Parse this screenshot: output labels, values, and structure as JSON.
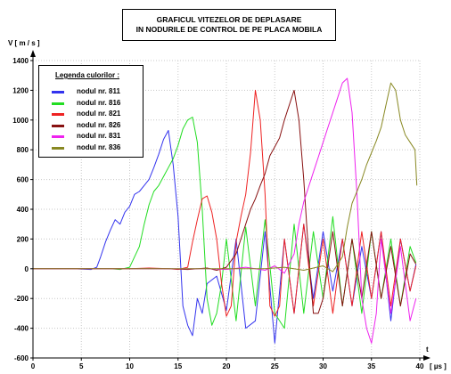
{
  "chart_data": {
    "type": "line",
    "title": [
      "GRAFICUL VITEZELOR DE DEPLASARE",
      "IN NODURILE DE CONTROL DE PE PLACA MOBILA"
    ],
    "ylabel": "V   [ m / s ]",
    "xlabel_top": "t",
    "xlabel": "[ µs ]",
    "xlim": [
      0,
      40
    ],
    "ylim": [
      -600,
      1400
    ],
    "xticks": [
      0,
      5,
      10,
      15,
      20,
      25,
      30,
      35,
      40
    ],
    "yticks": [
      -600,
      -400,
      -200,
      0,
      200,
      400,
      600,
      800,
      1000,
      1200,
      1400
    ],
    "grid": true,
    "legend_title": "Legenda culorilor :",
    "legend_position": "top-left",
    "series": [
      {
        "name": "nodul nr. 811",
        "color": "#3333ee",
        "x": [
          0,
          4,
          6,
          6.6,
          7,
          7.5,
          8,
          8.5,
          9,
          9.5,
          10,
          10.5,
          11,
          11.5,
          12,
          12.5,
          13,
          13.5,
          14,
          14.5,
          15,
          15.5,
          16,
          16.5,
          17,
          17.5,
          18,
          19,
          20,
          21,
          22,
          23,
          24,
          25,
          26,
          27,
          28,
          29,
          30,
          31,
          32,
          33,
          34,
          35,
          36,
          37,
          38,
          39,
          39.6
        ],
        "y": [
          0,
          0,
          -5,
          10,
          80,
          180,
          260,
          330,
          300,
          380,
          420,
          500,
          520,
          560,
          600,
          680,
          770,
          870,
          930,
          700,
          350,
          -250,
          -380,
          -450,
          -200,
          -300,
          -100,
          -50,
          -280,
          200,
          -400,
          -350,
          250,
          -500,
          200,
          -300,
          300,
          -200,
          250,
          -150,
          200,
          -250,
          150,
          -200,
          250,
          -350,
          200,
          -150,
          30
        ]
      },
      {
        "name": "nodul nr. 816",
        "color": "#22dd22",
        "x": [
          0,
          8,
          9,
          10,
          11,
          11.5,
          12,
          12.5,
          13,
          13.5,
          14,
          14.5,
          15,
          15.5,
          16,
          16.5,
          17,
          17.5,
          18,
          18.5,
          19,
          19.5,
          20,
          21,
          22,
          23,
          24,
          25,
          26,
          27,
          28,
          29,
          30,
          31,
          32,
          33,
          34,
          35,
          36,
          37,
          38,
          39,
          39.6
        ],
        "y": [
          0,
          0,
          -5,
          10,
          150,
          300,
          430,
          520,
          560,
          620,
          680,
          740,
          830,
          940,
          1000,
          1020,
          850,
          400,
          -200,
          -380,
          -300,
          -100,
          200,
          -350,
          280,
          -250,
          330,
          -300,
          -400,
          300,
          -300,
          250,
          -200,
          350,
          -250,
          200,
          -300,
          250,
          -200,
          200,
          -250,
          150,
          40
        ]
      },
      {
        "name": "nodul nr. 821",
        "color": "#ee2222",
        "x": [
          0,
          10,
          12,
          14,
          15,
          16,
          16.5,
          17,
          17.5,
          18,
          18.5,
          19,
          19.5,
          20,
          20.5,
          21,
          21.5,
          22,
          22.5,
          23,
          23.5,
          24,
          24.5,
          25,
          25.5,
          26,
          27,
          28,
          29,
          30,
          31,
          32,
          33,
          34,
          35,
          36,
          37,
          38,
          39,
          39.6
        ],
        "y": [
          0,
          0,
          5,
          0,
          -5,
          10,
          180,
          330,
          470,
          490,
          380,
          200,
          -100,
          -320,
          -250,
          180,
          350,
          500,
          780,
          1200,
          1000,
          500,
          -250,
          -320,
          -250,
          200,
          -300,
          300,
          -250,
          200,
          -300,
          200,
          -250,
          250,
          -200,
          250,
          -250,
          200,
          -150,
          20
        ]
      },
      {
        "name": "nodul nr. 826",
        "color": "#881111",
        "x": [
          0,
          14,
          16,
          18,
          19,
          20,
          21,
          21.5,
          22,
          22.5,
          23,
          23.5,
          24,
          24.5,
          25,
          25.5,
          26,
          26.5,
          27,
          27.5,
          28,
          28.5,
          29,
          29.5,
          30,
          31,
          32,
          33,
          34,
          35,
          36,
          37,
          38,
          39,
          39.6
        ],
        "y": [
          0,
          0,
          -5,
          5,
          -10,
          10,
          100,
          200,
          300,
          400,
          470,
          560,
          640,
          760,
          820,
          880,
          1000,
          1100,
          1200,
          1000,
          600,
          100,
          -300,
          -300,
          -200,
          250,
          -250,
          200,
          -200,
          250,
          -200,
          150,
          -250,
          100,
          30
        ]
      },
      {
        "name": "nodul nr. 831",
        "color": "#ee22ee",
        "x": [
          0,
          18,
          20,
          22,
          24,
          25,
          26,
          27,
          27.5,
          28,
          28.5,
          29,
          29.5,
          30,
          30.5,
          31,
          31.5,
          32,
          32.5,
          33,
          33.5,
          34,
          34.5,
          35,
          35.5,
          36,
          37,
          38,
          39,
          39.6
        ],
        "y": [
          0,
          0,
          -5,
          10,
          -10,
          20,
          -30,
          100,
          300,
          450,
          550,
          650,
          750,
          850,
          950,
          1050,
          1150,
          1250,
          1280,
          1050,
          500,
          -200,
          -400,
          -500,
          -300,
          200,
          -300,
          150,
          -350,
          -200
        ]
      },
      {
        "name": "nodul nr. 836",
        "color": "#888822",
        "x": [
          0,
          24,
          26,
          28,
          30,
          31,
          32,
          32.5,
          33,
          33.5,
          34,
          34.5,
          35,
          35.5,
          36,
          36.5,
          37,
          37.5,
          38,
          38.5,
          39,
          39.5,
          39.7
        ],
        "y": [
          0,
          0,
          10,
          -10,
          20,
          -20,
          80,
          280,
          440,
          520,
          600,
          700,
          780,
          860,
          950,
          1100,
          1250,
          1200,
          1000,
          900,
          850,
          800,
          560
        ]
      }
    ]
  }
}
